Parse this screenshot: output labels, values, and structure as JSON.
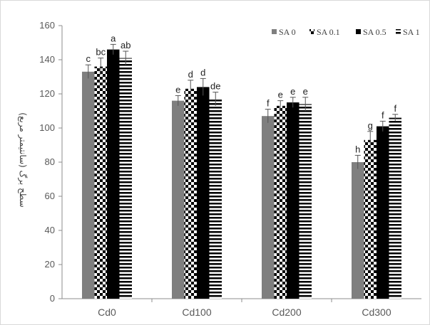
{
  "chart_data": {
    "type": "bar",
    "ylabel": "سطح برگ (سانتیمتر مربع)",
    "xlabel": "",
    "ylim": [
      0,
      160
    ],
    "yticks": [
      0,
      20,
      40,
      60,
      80,
      100,
      120,
      140,
      160
    ],
    "categories": [
      "Cd0",
      "Cd100",
      "Cd200",
      "Cd300"
    ],
    "legend_position": "top-right",
    "grid": false,
    "series": [
      {
        "name": "SA 0",
        "pattern": "solid-gray",
        "color": "#7f7f7f",
        "values": [
          133,
          116,
          107,
          80
        ],
        "errors": [
          4,
          3,
          4,
          4
        ],
        "labels": [
          "c",
          "e",
          "f",
          "h"
        ]
      },
      {
        "name": "SA 0.1",
        "pattern": "checkerboard",
        "color": "#000000",
        "values": [
          136,
          123,
          113,
          93
        ],
        "errors": [
          5,
          5,
          3,
          5
        ],
        "labels": [
          "bc",
          "d",
          "e",
          "g"
        ]
      },
      {
        "name": "SA 0.5",
        "pattern": "solid-black",
        "color": "#000000",
        "values": [
          146,
          124,
          115,
          101
        ],
        "errors": [
          3,
          5,
          3,
          3
        ],
        "labels": [
          "a",
          "d",
          "e",
          "f"
        ]
      },
      {
        "name": "SA 1",
        "pattern": "horizontal-stripes",
        "color": "#000000",
        "values": [
          141,
          117,
          114,
          106
        ],
        "errors": [
          4,
          4,
          4,
          2
        ],
        "labels": [
          "ab",
          "de",
          "e",
          "f"
        ]
      }
    ]
  }
}
